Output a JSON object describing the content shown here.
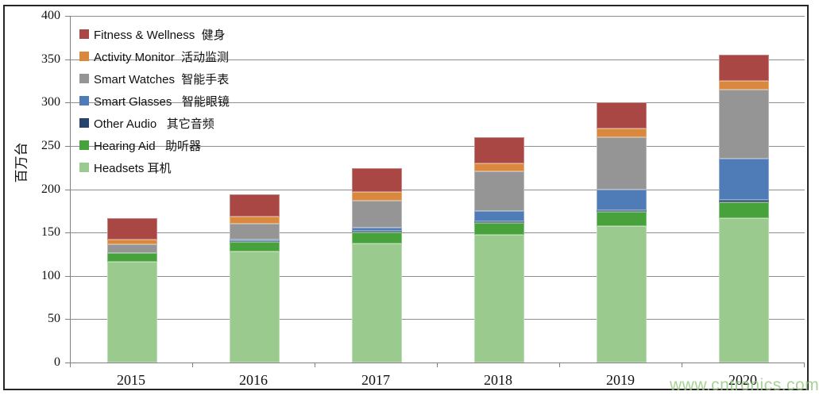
{
  "watermark": "www.cntronics.com",
  "colors": {
    "grid": "#8e8e8e",
    "axis": "#808080",
    "frame_border": "#262626",
    "background": "#ffffff",
    "watermark": "rgba(146,199,123,0.8)"
  },
  "chart_data": {
    "type": "bar",
    "stacked": true,
    "title": "",
    "ylabel": "百万台",
    "xlabel": "",
    "ylim": [
      0,
      400
    ],
    "ytick_step": 50,
    "grid": true,
    "legend_position": "inside-top-left",
    "categories": [
      "2015",
      "2016",
      "2017",
      "2018",
      "2019",
      "2020"
    ],
    "series": [
      {
        "name": "Headsets",
        "label": "Headsets 耳机",
        "color": "#9BCA8F",
        "values": [
          116,
          128,
          137,
          147,
          157,
          167
        ]
      },
      {
        "name": "Hearing Aid",
        "label": "Hearing Aid   助听器",
        "color": "#47A23C",
        "values": [
          10,
          11,
          13,
          14,
          17,
          18
        ]
      },
      {
        "name": "Other Audio",
        "label": "Other Audio   其它音频",
        "color": "#27426B",
        "values": [
          0,
          1,
          2,
          2,
          2,
          3
        ]
      },
      {
        "name": "Smart Glasses",
        "label": "Smart Glasses   智能眼镜",
        "color": "#4F7CB7",
        "values": [
          0,
          2,
          4,
          12,
          24,
          47
        ]
      },
      {
        "name": "Smart Watches",
        "label": "Smart Watches  智能手表",
        "color": "#959595",
        "values": [
          10,
          18,
          31,
          46,
          60,
          80
        ]
      },
      {
        "name": "Activity Monitor",
        "label": "Activity Monitor  活动监测",
        "color": "#DA883D",
        "values": [
          6,
          8,
          10,
          9,
          10,
          10
        ]
      },
      {
        "name": "Fitness & Wellness",
        "label": "Fitness & Wellness  健身",
        "color": "#A84743",
        "values": [
          25,
          26,
          27,
          30,
          30,
          30
        ]
      }
    ],
    "totals": [
      167,
      194,
      224,
      260,
      300,
      355
    ],
    "legend_order_top_to_bottom": [
      "Fitness & Wellness",
      "Activity Monitor",
      "Smart Watches",
      "Smart Glasses",
      "Other Audio",
      "Hearing Aid",
      "Headsets"
    ]
  }
}
